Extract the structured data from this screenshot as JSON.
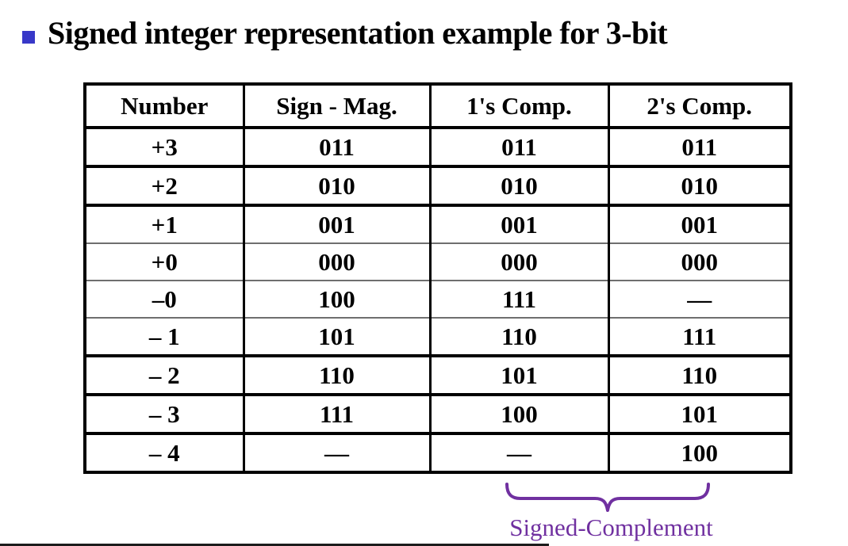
{
  "slide": {
    "title": "Signed integer representation example for 3-bit"
  },
  "colors": {
    "bullet_blue": "#3838C8",
    "green": "#00A650",
    "red": "#FF0000",
    "dark_red": "#C00000",
    "purple": "#7030A0"
  },
  "table": {
    "headers": [
      "Number",
      "Sign - Mag.",
      "1's Comp.",
      "2's Comp."
    ],
    "rows": [
      {
        "cells": [
          "+3",
          "011",
          "011",
          "011"
        ],
        "colors": [
          "black",
          "black",
          "black",
          "black"
        ],
        "divider": "thick"
      },
      {
        "cells": [
          "+2",
          "010",
          "010",
          "010"
        ],
        "colors": [
          "black",
          "black",
          "black",
          "black"
        ],
        "divider": "thick"
      },
      {
        "cells": [
          "+1",
          "001",
          "001",
          "001"
        ],
        "colors": [
          "black",
          "green",
          "green",
          "green"
        ],
        "divider": "thin"
      },
      {
        "cells": [
          "+0",
          "000",
          "000",
          "000"
        ],
        "colors": [
          "red",
          "red",
          "red",
          "red"
        ],
        "divider": "thin"
      },
      {
        "cells": [
          "–0",
          "100",
          "111",
          "—"
        ],
        "colors": [
          "red",
          "red",
          "red",
          "black"
        ],
        "divider": "thin"
      },
      {
        "cells": [
          "– 1",
          "101",
          "110",
          "111"
        ],
        "colors": [
          "black",
          "green",
          "green",
          "green"
        ],
        "divider": "thick"
      },
      {
        "cells": [
          "– 2",
          "110",
          "101",
          "110"
        ],
        "colors": [
          "black",
          "black",
          "black",
          "black"
        ],
        "divider": "thick"
      },
      {
        "cells": [
          "– 3",
          "111",
          "100",
          "101"
        ],
        "colors": [
          "black",
          "black",
          "black",
          "black"
        ],
        "divider": "thick"
      },
      {
        "cells": [
          "– 4",
          "—",
          "—",
          "100"
        ],
        "colors": [
          "black",
          "black",
          "black",
          "darkred"
        ],
        "divider": "none"
      }
    ]
  },
  "annotation": {
    "label": "Signed-Complement"
  }
}
